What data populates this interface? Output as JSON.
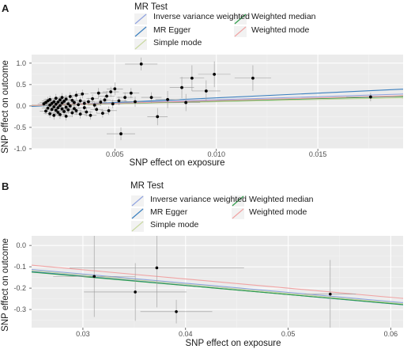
{
  "colors": {
    "inverse_variance_weighted": "#8fa2e0",
    "mr_egger": "#3a7fbf",
    "simple_mode": "#c8d8a0",
    "weighted_median": "#2e9e4a",
    "weighted_mode": "#f0a3a3",
    "panel_background": "#ebebeb",
    "grid_major": "#ffffff",
    "grid_minor": "#f3f3f3",
    "point": "#000000",
    "errorbar": "#9a9a9a"
  },
  "chart_data": [
    {
      "type": "scatter",
      "panel_label": "A",
      "title": "",
      "xlabel": "SNP effect on exposure",
      "ylabel": "SNP effect on outcome",
      "xlim": [
        0.0009,
        0.0192
      ],
      "ylim": [
        -1.0,
        1.2
      ],
      "x_ticks": [
        0.005,
        0.01,
        0.015
      ],
      "x_tick_labels": [
        "0.005",
        "0.010",
        "0.015"
      ],
      "y_ticks": [
        -1.0,
        -0.5,
        0.0,
        0.5,
        1.0
      ],
      "y_tick_labels": [
        "-1.0",
        "-0.5",
        "0.0",
        "0.5",
        "1.0"
      ],
      "grid": true,
      "legend": {
        "title": "MR Test",
        "position": "top-left",
        "entries": [
          {
            "label": "Inverse variance weighted",
            "color_key": "inverse_variance_weighted"
          },
          {
            "label": "MR Egger",
            "color_key": "mr_egger"
          },
          {
            "label": "Simple mode",
            "color_key": "simple_mode"
          },
          {
            "label": "Weighted median",
            "color_key": "weighted_median"
          },
          {
            "label": "Weighted mode",
            "color_key": "weighted_mode"
          }
        ]
      },
      "lines": [
        {
          "method": "Inverse variance weighted",
          "color_key": "inverse_variance_weighted",
          "intercept": 0.0,
          "slope": 14.5
        },
        {
          "method": "MR Egger",
          "color_key": "mr_egger",
          "intercept": -0.03,
          "slope": 22.0
        },
        {
          "method": "Simple mode",
          "color_key": "simple_mode",
          "intercept": 0.0,
          "slope": 10.0
        },
        {
          "method": "Weighted median",
          "color_key": "weighted_median",
          "intercept": 0.0,
          "slope": 11.5
        },
        {
          "method": "Weighted mode",
          "color_key": "weighted_mode",
          "intercept": 0.0,
          "slope": 12.5
        }
      ],
      "points": [
        {
          "x": 0.0015,
          "y": 0.05,
          "xerr": 0.0003,
          "yerr": 0.08
        },
        {
          "x": 0.0016,
          "y": -0.12,
          "xerr": 0.0003,
          "yerr": 0.08
        },
        {
          "x": 0.0016,
          "y": 0.08,
          "xerr": 0.0003,
          "yerr": 0.09
        },
        {
          "x": 0.0017,
          "y": -0.05,
          "xerr": 0.0003,
          "yerr": 0.08
        },
        {
          "x": 0.0017,
          "y": 0.12,
          "xerr": 0.0003,
          "yerr": 0.09
        },
        {
          "x": 0.0018,
          "y": -0.18,
          "xerr": 0.0003,
          "yerr": 0.1
        },
        {
          "x": 0.0018,
          "y": 0.02,
          "xerr": 0.0003,
          "yerr": 0.08
        },
        {
          "x": 0.0018,
          "y": 0.15,
          "xerr": 0.0003,
          "yerr": 0.09
        },
        {
          "x": 0.0019,
          "y": -0.08,
          "xerr": 0.0003,
          "yerr": 0.09
        },
        {
          "x": 0.0019,
          "y": 0.06,
          "xerr": 0.0003,
          "yerr": 0.08
        },
        {
          "x": 0.002,
          "y": -0.22,
          "xerr": 0.0003,
          "yerr": 0.1
        },
        {
          "x": 0.002,
          "y": 0.1,
          "xerr": 0.0003,
          "yerr": 0.09
        },
        {
          "x": 0.002,
          "y": -0.02,
          "xerr": 0.0003,
          "yerr": 0.08
        },
        {
          "x": 0.0021,
          "y": 0.18,
          "xerr": 0.0003,
          "yerr": 0.1
        },
        {
          "x": 0.0021,
          "y": -0.1,
          "xerr": 0.0003,
          "yerr": 0.09
        },
        {
          "x": 0.0021,
          "y": 0.04,
          "xerr": 0.0003,
          "yerr": 0.08
        },
        {
          "x": 0.0022,
          "y": -0.15,
          "xerr": 0.0003,
          "yerr": 0.1
        },
        {
          "x": 0.0022,
          "y": 0.09,
          "xerr": 0.0003,
          "yerr": 0.09
        },
        {
          "x": 0.0022,
          "y": -0.04,
          "xerr": 0.0003,
          "yerr": 0.08
        },
        {
          "x": 0.0023,
          "y": 0.14,
          "xerr": 0.0003,
          "yerr": 0.1
        },
        {
          "x": 0.0023,
          "y": -0.2,
          "xerr": 0.0003,
          "yerr": 0.1
        },
        {
          "x": 0.0023,
          "y": 0.01,
          "xerr": 0.0003,
          "yerr": 0.08
        },
        {
          "x": 0.0024,
          "y": -0.07,
          "xerr": 0.0003,
          "yerr": 0.09
        },
        {
          "x": 0.0024,
          "y": 0.2,
          "xerr": 0.0003,
          "yerr": 0.1
        },
        {
          "x": 0.0024,
          "y": 0.07,
          "xerr": 0.0003,
          "yerr": 0.08
        },
        {
          "x": 0.0025,
          "y": -0.13,
          "xerr": 0.0003,
          "yerr": 0.1
        },
        {
          "x": 0.0025,
          "y": 0.11,
          "xerr": 0.0003,
          "yerr": 0.09
        },
        {
          "x": 0.0026,
          "y": -0.03,
          "xerr": 0.0003,
          "yerr": 0.08
        },
        {
          "x": 0.0026,
          "y": 0.16,
          "xerr": 0.0003,
          "yerr": 0.1
        },
        {
          "x": 0.0026,
          "y": -0.24,
          "xerr": 0.0003,
          "yerr": 0.1
        },
        {
          "x": 0.0027,
          "y": 0.05,
          "xerr": 0.0003,
          "yerr": 0.08
        },
        {
          "x": 0.0027,
          "y": -0.09,
          "xerr": 0.0003,
          "yerr": 0.09
        },
        {
          "x": 0.0028,
          "y": 0.22,
          "xerr": 0.0003,
          "yerr": 0.1
        },
        {
          "x": 0.0028,
          "y": 0.0,
          "xerr": 0.0003,
          "yerr": 0.08
        },
        {
          "x": 0.0029,
          "y": -0.16,
          "xerr": 0.0003,
          "yerr": 0.1
        },
        {
          "x": 0.0029,
          "y": 0.13,
          "xerr": 0.0003,
          "yerr": 0.09
        },
        {
          "x": 0.003,
          "y": -0.06,
          "xerr": 0.0003,
          "yerr": 0.09
        },
        {
          "x": 0.003,
          "y": 0.08,
          "xerr": 0.0003,
          "yerr": 0.08
        },
        {
          "x": 0.0031,
          "y": 0.25,
          "xerr": 0.0003,
          "yerr": 0.1
        },
        {
          "x": 0.0031,
          "y": -0.11,
          "xerr": 0.0003,
          "yerr": 0.1
        },
        {
          "x": 0.0032,
          "y": 0.03,
          "xerr": 0.0003,
          "yerr": 0.08
        },
        {
          "x": 0.0033,
          "y": -0.19,
          "xerr": 0.0003,
          "yerr": 0.1
        },
        {
          "x": 0.0033,
          "y": 0.12,
          "xerr": 0.0003,
          "yerr": 0.09
        },
        {
          "x": 0.0034,
          "y": 0.28,
          "xerr": 0.0003,
          "yerr": 0.1
        },
        {
          "x": 0.0035,
          "y": -0.04,
          "xerr": 0.0003,
          "yerr": 0.09
        },
        {
          "x": 0.0035,
          "y": 0.06,
          "xerr": 0.0003,
          "yerr": 0.08
        },
        {
          "x": 0.0036,
          "y": -0.14,
          "xerr": 0.0003,
          "yerr": 0.1
        },
        {
          "x": 0.0037,
          "y": 0.1,
          "xerr": 0.0003,
          "yerr": 0.09
        },
        {
          "x": 0.0038,
          "y": -0.22,
          "xerr": 0.0003,
          "yerr": 0.1
        },
        {
          "x": 0.0039,
          "y": 0.17,
          "xerr": 0.0003,
          "yerr": 0.1
        },
        {
          "x": 0.004,
          "y": 0.02,
          "xerr": 0.0003,
          "yerr": 0.08
        },
        {
          "x": 0.0041,
          "y": -0.08,
          "xerr": 0.0003,
          "yerr": 0.09
        },
        {
          "x": 0.0042,
          "y": 0.3,
          "xerr": 0.0004,
          "yerr": 0.12
        },
        {
          "x": 0.0043,
          "y": 0.09,
          "xerr": 0.0003,
          "yerr": 0.09
        },
        {
          "x": 0.0044,
          "y": -0.17,
          "xerr": 0.0003,
          "yerr": 0.1
        },
        {
          "x": 0.0045,
          "y": 0.14,
          "xerr": 0.0003,
          "yerr": 0.1
        },
        {
          "x": 0.0046,
          "y": 0.23,
          "xerr": 0.0004,
          "yerr": 0.12
        },
        {
          "x": 0.0047,
          "y": -0.11,
          "xerr": 0.0004,
          "yerr": 0.1
        },
        {
          "x": 0.0048,
          "y": 0.33,
          "xerr": 0.0004,
          "yerr": 0.12
        },
        {
          "x": 0.0049,
          "y": 0.05,
          "xerr": 0.0004,
          "yerr": 0.1
        },
        {
          "x": 0.005,
          "y": 0.4,
          "xerr": 0.0004,
          "yerr": 0.15
        },
        {
          "x": 0.0052,
          "y": 0.12,
          "xerr": 0.0004,
          "yerr": 0.1
        },
        {
          "x": 0.0053,
          "y": -0.65,
          "xerr": 0.0007,
          "yerr": 0.15
        },
        {
          "x": 0.0055,
          "y": 0.2,
          "xerr": 0.0004,
          "yerr": 0.12
        },
        {
          "x": 0.0058,
          "y": 0.3,
          "xerr": 0.0004,
          "yerr": 0.12
        },
        {
          "x": 0.006,
          "y": 0.1,
          "xerr": 0.0004,
          "yerr": 0.12
        },
        {
          "x": 0.0063,
          "y": 0.98,
          "xerr": 0.0008,
          "yerr": 0.15
        },
        {
          "x": 0.0068,
          "y": 0.2,
          "xerr": 0.0005,
          "yerr": 0.12
        },
        {
          "x": 0.0071,
          "y": -0.25,
          "xerr": 0.0005,
          "yerr": 0.2
        },
        {
          "x": 0.0076,
          "y": 0.15,
          "xerr": 0.0006,
          "yerr": 0.2
        },
        {
          "x": 0.0085,
          "y": 0.08,
          "xerr": 0.0007,
          "yerr": 0.2
        },
        {
          "x": 0.0083,
          "y": 0.43,
          "xerr": 0.0006,
          "yerr": 0.25
        },
        {
          "x": 0.0088,
          "y": 0.65,
          "xerr": 0.0006,
          "yerr": 0.3
        },
        {
          "x": 0.0095,
          "y": 0.35,
          "xerr": 0.0007,
          "yerr": 0.25
        },
        {
          "x": 0.0099,
          "y": 0.74,
          "xerr": 0.0008,
          "yerr": 0.3
        },
        {
          "x": 0.0118,
          "y": 0.65,
          "xerr": 0.0009,
          "yerr": 0.3
        },
        {
          "x": 0.0176,
          "y": 0.21,
          "xerr": 0.0012,
          "yerr": 0.1
        }
      ]
    },
    {
      "type": "scatter",
      "panel_label": "B",
      "title": "",
      "xlabel": "SNP effect on exposure",
      "ylabel": "SNP effect on outcome",
      "xlim": [
        0.025,
        0.0612
      ],
      "ylim": [
        -0.385,
        0.045
      ],
      "x_ticks": [
        0.03,
        0.04,
        0.05,
        0.06
      ],
      "x_tick_labels": [
        "0.03",
        "0.04",
        "0.05",
        "0.06"
      ],
      "y_ticks": [
        -0.3,
        -0.2,
        -0.1,
        0.0
      ],
      "y_tick_labels": [
        "-0.3",
        "-0.2",
        "-0.1",
        "0.0"
      ],
      "grid": true,
      "legend": {
        "title": "MR Test",
        "position": "top-left",
        "entries": [
          {
            "label": "Inverse variance weighted",
            "color_key": "inverse_variance_weighted"
          },
          {
            "label": "MR Egger",
            "color_key": "mr_egger"
          },
          {
            "label": "Simple mode",
            "color_key": "simple_mode"
          },
          {
            "label": "Weighted median",
            "color_key": "weighted_median"
          },
          {
            "label": "Weighted mode",
            "color_key": "weighted_mode"
          }
        ]
      },
      "lines": [
        {
          "method": "Inverse variance weighted",
          "color_key": "inverse_variance_weighted",
          "intercept": -0.005,
          "slope": -4.3
        },
        {
          "method": "MR Egger",
          "color_key": "mr_egger",
          "intercept": -0.015,
          "slope": -4.3
        },
        {
          "method": "Simple mode",
          "color_key": "simple_mode",
          "intercept": -0.01,
          "slope": -4.3
        },
        {
          "method": "Weighted median",
          "color_key": "weighted_median",
          "intercept": -0.02,
          "slope": -4.2
        },
        {
          "method": "Weighted mode",
          "color_key": "weighted_mode",
          "intercept": 0.015,
          "slope": -4.3
        }
      ],
      "points": [
        {
          "x": 0.0311,
          "y": -0.145,
          "xerr": 0.004,
          "yerr": 0.19
        },
        {
          "x": 0.0351,
          "y": -0.218,
          "xerr": 0.005,
          "yerr": 0.135
        },
        {
          "x": 0.0372,
          "y": -0.105,
          "xerr": 0.0085,
          "yerr": 0.185
        },
        {
          "x": 0.0391,
          "y": -0.31,
          "xerr": 0.0035,
          "yerr": 0.055
        },
        {
          "x": 0.0541,
          "y": -0.228,
          "xerr": 0.0025,
          "yerr": 0.16
        }
      ]
    }
  ]
}
